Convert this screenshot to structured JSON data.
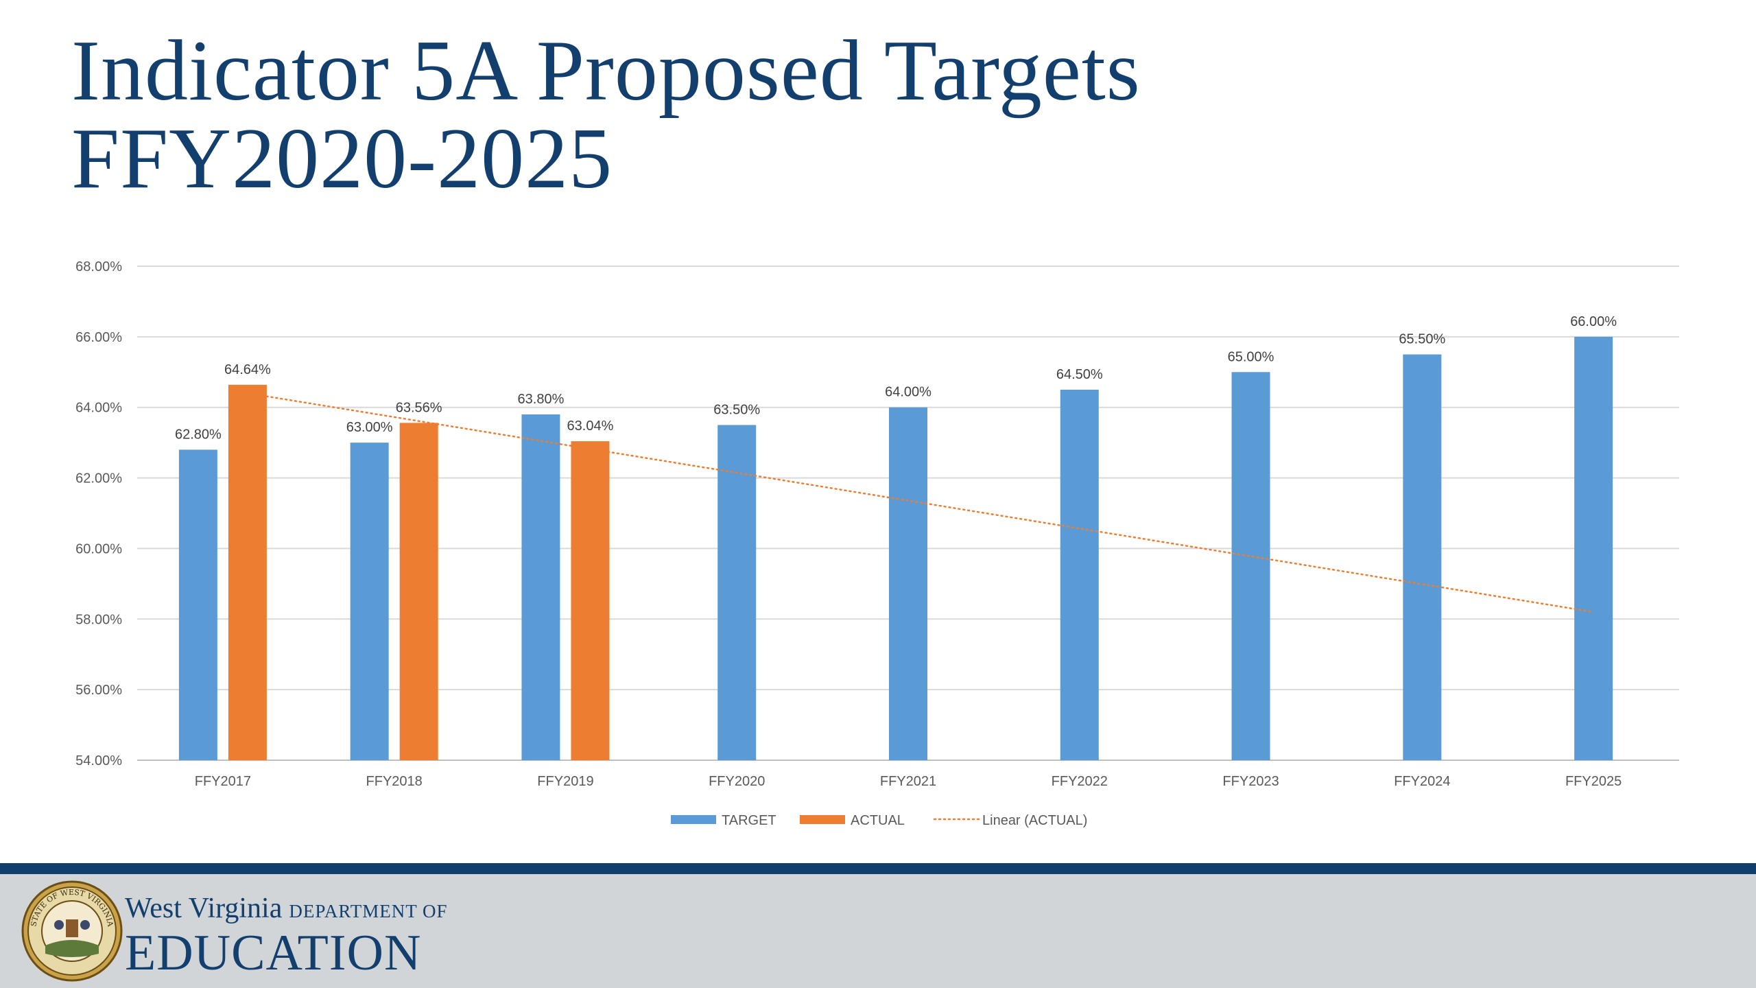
{
  "slide": {
    "title_line1": "Indicator 5A Proposed Targets",
    "title_line2": "FFY2020-2025"
  },
  "chart_data": {
    "type": "bar",
    "title": "",
    "xlabel": "",
    "ylabel": "",
    "ylim": [
      54,
      68
    ],
    "ytick_labels": [
      "54.00%",
      "56.00%",
      "58.00%",
      "60.00%",
      "62.00%",
      "64.00%",
      "66.00%",
      "68.00%"
    ],
    "ytick_values": [
      54,
      56,
      58,
      60,
      62,
      64,
      66,
      68
    ],
    "grid": true,
    "legend_position": "bottom",
    "categories": [
      "FFY2017",
      "FFY2018",
      "FFY2019",
      "FFY2020",
      "FFY2021",
      "FFY2022",
      "FFY2023",
      "FFY2024",
      "FFY2025"
    ],
    "series": [
      {
        "name": "TARGET",
        "color": "#5b9bd5",
        "values": [
          62.8,
          63.0,
          63.8,
          63.5,
          64.0,
          64.5,
          65.0,
          65.5,
          66.0
        ],
        "labels": [
          "62.80%",
          "63.00%",
          "63.80%",
          "63.50%",
          "64.00%",
          "64.50%",
          "65.00%",
          "65.50%",
          "66.00%"
        ]
      },
      {
        "name": "ACTUAL",
        "color": "#ed7d31",
        "values": [
          64.64,
          63.56,
          63.04,
          null,
          null,
          null,
          null,
          null,
          null
        ],
        "labels": [
          "64.64%",
          "63.56%",
          "63.04%",
          "",
          "",
          "",
          "",
          "",
          ""
        ]
      }
    ],
    "trendline": {
      "name": "Linear (ACTUAL)",
      "type": "linear",
      "color": "#ed7d31",
      "style": "dotted",
      "start": 64.4,
      "end": 58.2
    }
  },
  "footer": {
    "brand_line1": "West Virginia",
    "brand_dept": "DEPARTMENT OF",
    "brand_line2": "EDUCATION",
    "seal_text": "STATE OF WEST VIRGINIA"
  }
}
